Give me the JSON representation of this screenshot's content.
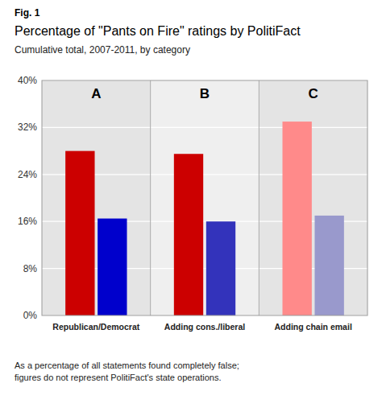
{
  "chart_data": {
    "type": "bar",
    "fig_label": "Fig. 1",
    "title": "Percentage of \"Pants on Fire\" ratings by PolitiFact",
    "subtitle": "Cumulative total, 2007-2011, by category",
    "footnote": "As a percentage of all statements found completely false;\nfigures do not represent PolitiFact's state operations.",
    "annotations": [
      "A",
      "B",
      "C"
    ],
    "categories": [
      "Republican/Democrat",
      "Adding cons./liberal",
      "Adding chain email"
    ],
    "series": [
      {
        "values": [
          28.0,
          27.5,
          33.0
        ],
        "colors": [
          "#cc0000",
          "#cc0000",
          "#ff8a8a"
        ]
      },
      {
        "values": [
          16.5,
          16.0,
          17.0
        ],
        "colors": [
          "#0000cc",
          "#3333bb",
          "#9999cc"
        ]
      }
    ],
    "ylim": [
      0,
      40
    ],
    "yticks": [
      {
        "value": 0,
        "label": "0%"
      },
      {
        "value": 8,
        "label": "8%"
      },
      {
        "value": 16,
        "label": "16%"
      },
      {
        "value": 24,
        "label": "24%"
      },
      {
        "value": 32,
        "label": "32%"
      },
      {
        "value": 40,
        "label": "40%"
      }
    ],
    "grid": true
  }
}
